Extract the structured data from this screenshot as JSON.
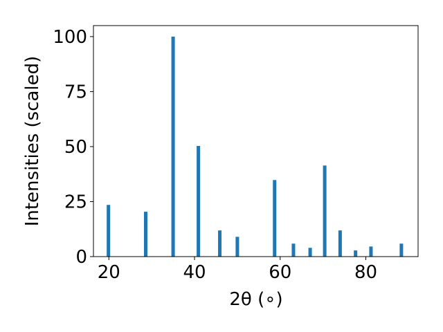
{
  "chart_data": {
    "type": "bar",
    "title": "",
    "xlabel": "2θ (∘)",
    "ylabel": "Intensities (scaled)",
    "xlim": [
      16.4,
      92.2
    ],
    "ylim": [
      0,
      105
    ],
    "x_ticks": [
      20,
      40,
      60,
      80
    ],
    "y_ticks": [
      0,
      25,
      50,
      75,
      100
    ],
    "grid": false,
    "legend": "none",
    "bar_color": "#1f77b4",
    "x": [
      19.9,
      28.6,
      35.0,
      40.9,
      45.9,
      50.0,
      58.7,
      63.1,
      67.0,
      70.4,
      74.0,
      77.6,
      81.2,
      88.3
    ],
    "values": [
      23.5,
      20.4,
      100,
      50.3,
      11.9,
      9.0,
      34.8,
      5.9,
      4.0,
      41.4,
      11.9,
      2.8,
      4.6,
      5.9
    ]
  }
}
